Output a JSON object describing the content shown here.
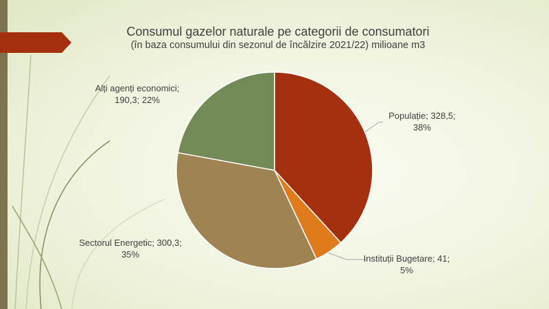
{
  "chart_data": {
    "type": "pie",
    "title": "Consumul gazelor naturale pe categorii de consumatori",
    "subtitle": "(în baza consumului din sezonul de încălzire 2021/22) milioane m3",
    "values": [
      328.5,
      41,
      300.3,
      190.3
    ],
    "value_labels": [
      "Populație; 328,5; 38%",
      "Instituții Bugetare; 41; 5%",
      "Sectorul Energetic; 300,3; 35%",
      "Alți agenți economici; 190,3; 22%"
    ],
    "colors": [
      "#a5300f",
      "#e07b1c",
      "#a08352",
      "#728a55"
    ]
  }
}
